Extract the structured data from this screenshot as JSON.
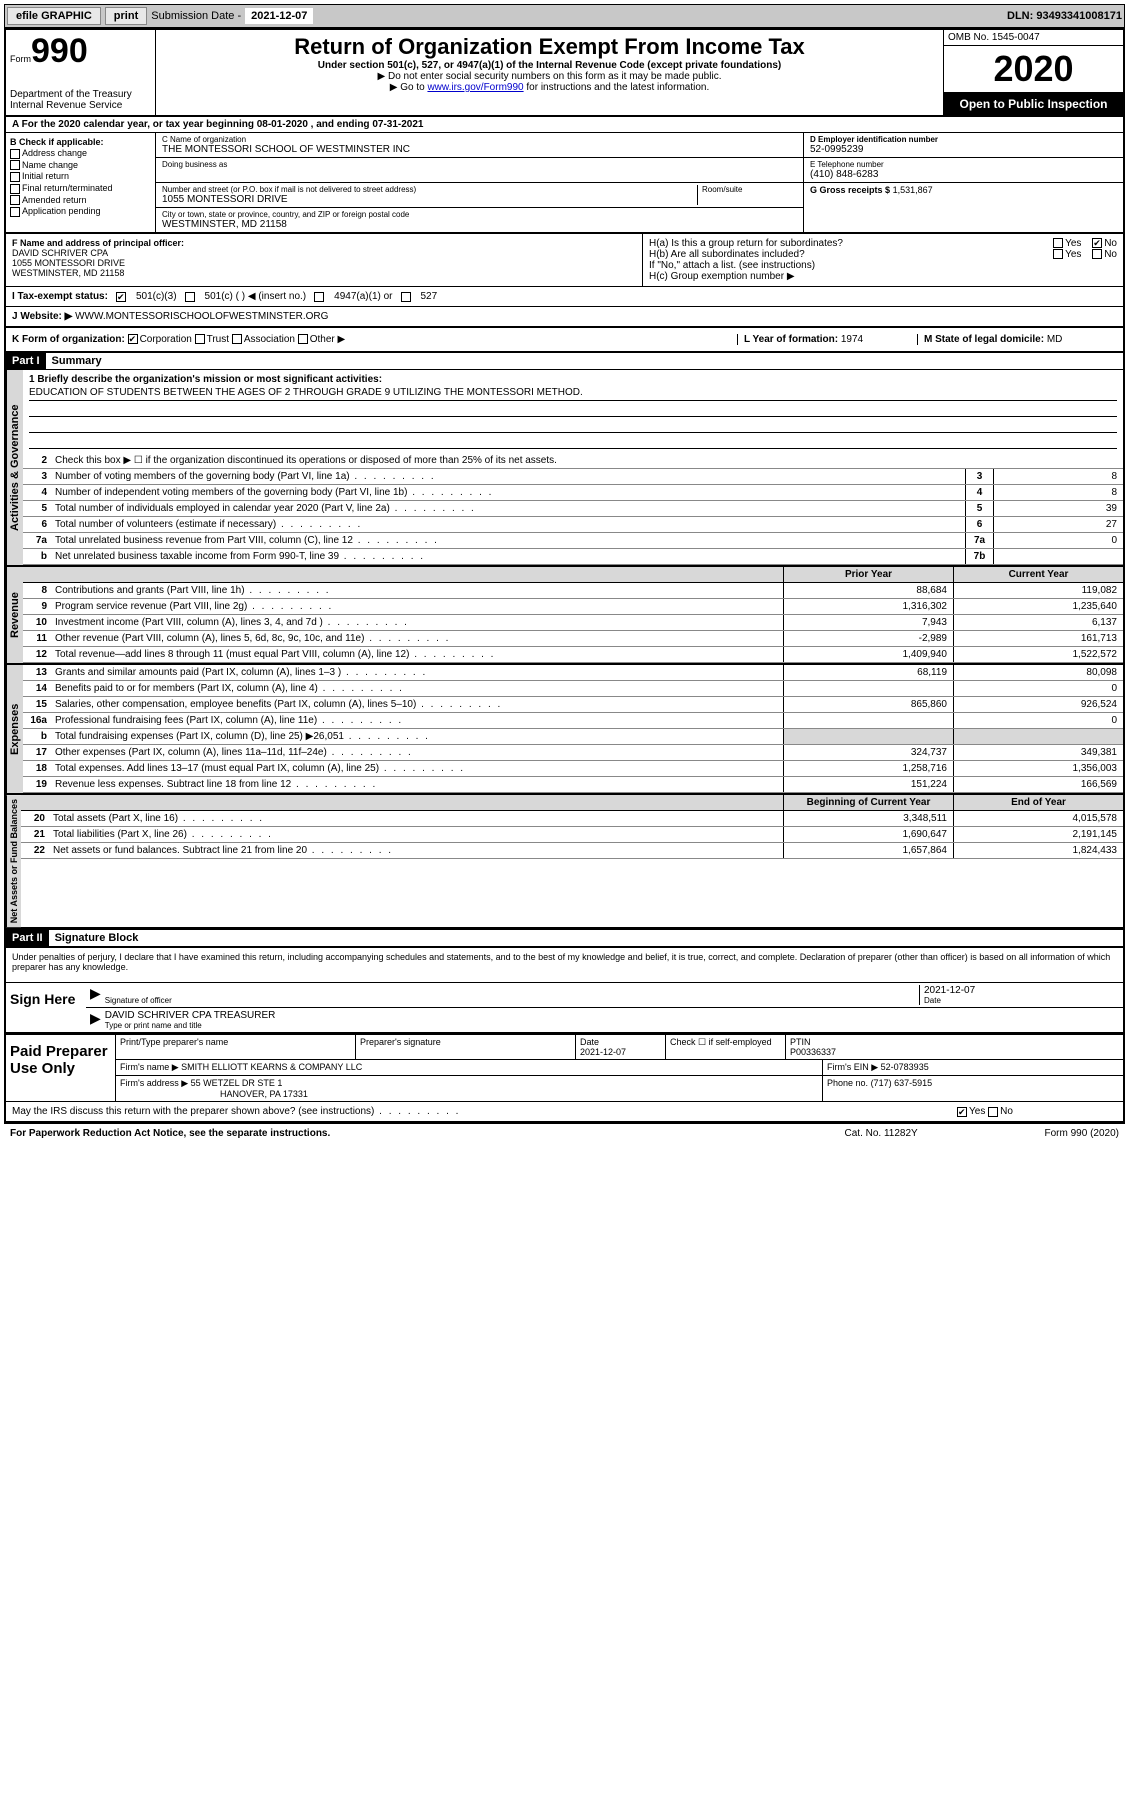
{
  "topbar": {
    "efile": "efile GRAPHIC",
    "print": "print",
    "sub_label": "Submission Date -",
    "sub_date": "2021-12-07",
    "dln": "DLN: 93493341008171"
  },
  "header": {
    "form_prefix": "Form",
    "form_number": "990",
    "dept": "Department of the Treasury\nInternal Revenue Service",
    "title": "Return of Organization Exempt From Income Tax",
    "subtitle": "Under section 501(c), 527, or 4947(a)(1) of the Internal Revenue Code (except private foundations)",
    "note1": "▶ Do not enter social security numbers on this form as it may be made public.",
    "note2_pre": "▶ Go to ",
    "note2_link": "www.irs.gov/Form990",
    "note2_post": " for instructions and the latest information.",
    "omb": "OMB No. 1545-0047",
    "year": "2020",
    "inspection": "Open to Public Inspection"
  },
  "period": "A For the 2020 calendar year, or tax year beginning 08-01-2020  , and ending 07-31-2021",
  "section_b": {
    "header": "B Check if applicable:",
    "items": [
      "Address change",
      "Name change",
      "Initial return",
      "Final return/terminated",
      "Amended return",
      "Application pending"
    ]
  },
  "section_c": {
    "name_label": "C Name of organization",
    "name": "THE MONTESSORI SCHOOL OF WESTMINSTER INC",
    "dba_label": "Doing business as",
    "addr_label": "Number and street (or P.O. box if mail is not delivered to street address)",
    "room_label": "Room/suite",
    "addr": "1055 MONTESSORI DRIVE",
    "city_label": "City or town, state or province, country, and ZIP or foreign postal code",
    "city": "WESTMINSTER, MD  21158"
  },
  "section_d": {
    "label": "D Employer identification number",
    "value": "52-0995239"
  },
  "section_e": {
    "label": "E Telephone number",
    "value": "(410) 848-6283"
  },
  "section_g": {
    "label": "G Gross receipts $",
    "value": "1,531,867"
  },
  "section_f": {
    "label": "F Name and address of principal officer:",
    "name": "DAVID SCHRIVER CPA",
    "addr1": "1055 MONTESSORI DRIVE",
    "addr2": "WESTMINSTER, MD  21158"
  },
  "section_h": {
    "ha": "H(a)  Is this a group return for subordinates?",
    "hb": "H(b)  Are all subordinates included?",
    "hb_note": "If \"No,\" attach a list. (see instructions)",
    "hc": "H(c)  Group exemption number ▶",
    "yes": "Yes",
    "no": "No"
  },
  "tax_status": {
    "label": "I  Tax-exempt status:",
    "opt1": "501(c)(3)",
    "opt2": "501(c) (   ) ◀ (insert no.)",
    "opt3": "4947(a)(1) or",
    "opt4": "527"
  },
  "website": {
    "label": "J  Website: ▶",
    "value": "WWW.MONTESSORISCHOOLOFWESTMINSTER.ORG"
  },
  "section_k": {
    "label": "K Form of organization:",
    "corp": "Corporation",
    "trust": "Trust",
    "assoc": "Association",
    "other": "Other ▶",
    "l_label": "L Year of formation:",
    "l_value": "1974",
    "m_label": "M State of legal domicile:",
    "m_value": "MD"
  },
  "part1": {
    "hdr": "Part I",
    "title": "Summary",
    "line1_label": "1  Briefly describe the organization's mission or most significant activities:",
    "line1_value": "EDUCATION OF STUDENTS BETWEEN THE AGES OF 2 THROUGH GRADE 9 UTILIZING THE MONTESSORI METHOD.",
    "line2": "Check this box ▶ ☐  if the organization discontinued its operations or disposed of more than 25% of its net assets."
  },
  "governance_lines": [
    {
      "num": "3",
      "desc": "Number of voting members of the governing body (Part VI, line 1a)",
      "box": "3",
      "val": "8"
    },
    {
      "num": "4",
      "desc": "Number of independent voting members of the governing body (Part VI, line 1b)",
      "box": "4",
      "val": "8"
    },
    {
      "num": "5",
      "desc": "Total number of individuals employed in calendar year 2020 (Part V, line 2a)",
      "box": "5",
      "val": "39"
    },
    {
      "num": "6",
      "desc": "Total number of volunteers (estimate if necessary)",
      "box": "6",
      "val": "27"
    },
    {
      "num": "7a",
      "desc": "Total unrelated business revenue from Part VIII, column (C), line 12",
      "box": "7a",
      "val": "0"
    },
    {
      "num": "b",
      "desc": "Net unrelated business taxable income from Form 990-T, line 39",
      "box": "7b",
      "val": ""
    }
  ],
  "col_headers": {
    "prior": "Prior Year",
    "current": "Current Year",
    "begin": "Beginning of Current Year",
    "end": "End of Year"
  },
  "revenue_lines": [
    {
      "num": "8",
      "desc": "Contributions and grants (Part VIII, line 1h)",
      "prior": "88,684",
      "curr": "119,082"
    },
    {
      "num": "9",
      "desc": "Program service revenue (Part VIII, line 2g)",
      "prior": "1,316,302",
      "curr": "1,235,640"
    },
    {
      "num": "10",
      "desc": "Investment income (Part VIII, column (A), lines 3, 4, and 7d )",
      "prior": "7,943",
      "curr": "6,137"
    },
    {
      "num": "11",
      "desc": "Other revenue (Part VIII, column (A), lines 5, 6d, 8c, 9c, 10c, and 11e)",
      "prior": "-2,989",
      "curr": "161,713"
    },
    {
      "num": "12",
      "desc": "Total revenue—add lines 8 through 11 (must equal Part VIII, column (A), line 12)",
      "prior": "1,409,940",
      "curr": "1,522,572"
    }
  ],
  "expense_lines": [
    {
      "num": "13",
      "desc": "Grants and similar amounts paid (Part IX, column (A), lines 1–3 )",
      "prior": "68,119",
      "curr": "80,098"
    },
    {
      "num": "14",
      "desc": "Benefits paid to or for members (Part IX, column (A), line 4)",
      "prior": "",
      "curr": "0"
    },
    {
      "num": "15",
      "desc": "Salaries, other compensation, employee benefits (Part IX, column (A), lines 5–10)",
      "prior": "865,860",
      "curr": "926,524"
    },
    {
      "num": "16a",
      "desc": "Professional fundraising fees (Part IX, column (A), line 11e)",
      "prior": "",
      "curr": "0"
    },
    {
      "num": "b",
      "desc": "Total fundraising expenses (Part IX, column (D), line 25) ▶26,051",
      "prior": "—shade—",
      "curr": "—shade—"
    },
    {
      "num": "17",
      "desc": "Other expenses (Part IX, column (A), lines 11a–11d, 11f–24e)",
      "prior": "324,737",
      "curr": "349,381"
    },
    {
      "num": "18",
      "desc": "Total expenses. Add lines 13–17 (must equal Part IX, column (A), line 25)",
      "prior": "1,258,716",
      "curr": "1,356,003"
    },
    {
      "num": "19",
      "desc": "Revenue less expenses. Subtract line 18 from line 12",
      "prior": "151,224",
      "curr": "166,569"
    }
  ],
  "balance_lines": [
    {
      "num": "20",
      "desc": "Total assets (Part X, line 16)",
      "prior": "3,348,511",
      "curr": "4,015,578"
    },
    {
      "num": "21",
      "desc": "Total liabilities (Part X, line 26)",
      "prior": "1,690,647",
      "curr": "2,191,145"
    },
    {
      "num": "22",
      "desc": "Net assets or fund balances. Subtract line 21 from line 20",
      "prior": "1,657,864",
      "curr": "1,824,433"
    }
  ],
  "vtabs": {
    "gov": "Activities & Governance",
    "rev": "Revenue",
    "exp": "Expenses",
    "bal": "Net Assets or Fund Balances"
  },
  "part2": {
    "hdr": "Part II",
    "title": "Signature Block",
    "declaration": "Under penalties of perjury, I declare that I have examined this return, including accompanying schedules and statements, and to the best of my knowledge and belief, it is true, correct, and complete. Declaration of preparer (other than officer) is based on all information of which preparer has any knowledge."
  },
  "sign": {
    "label": "Sign Here",
    "sig_label": "Signature of officer",
    "date_label": "Date",
    "date": "2021-12-07",
    "name": "DAVID SCHRIVER CPA  TREASURER",
    "name_label": "Type or print name and title"
  },
  "preparer": {
    "label": "Paid Preparer Use Only",
    "col1": "Print/Type preparer's name",
    "col2": "Preparer's signature",
    "col3": "Date",
    "date": "2021-12-07",
    "col4": "Check ☐ if self-employed",
    "col5": "PTIN",
    "ptin": "P00336337",
    "firm_label": "Firm's name    ▶",
    "firm_name": "SMITH ELLIOTT KEARNS & COMPANY LLC",
    "ein_label": "Firm's EIN ▶",
    "ein": "52-0783935",
    "addr_label": "Firm's address ▶",
    "addr1": "55 WETZEL DR STE 1",
    "addr2": "HANOVER, PA  17331",
    "phone_label": "Phone no.",
    "phone": "(717) 637-5915"
  },
  "discuss": {
    "text": "May the IRS discuss this return with the preparer shown above? (see instructions)",
    "yes": "Yes",
    "no": "No"
  },
  "footer": {
    "left": "For Paperwork Reduction Act Notice, see the separate instructions.",
    "mid": "Cat. No. 11282Y",
    "right": "Form 990 (2020)"
  }
}
